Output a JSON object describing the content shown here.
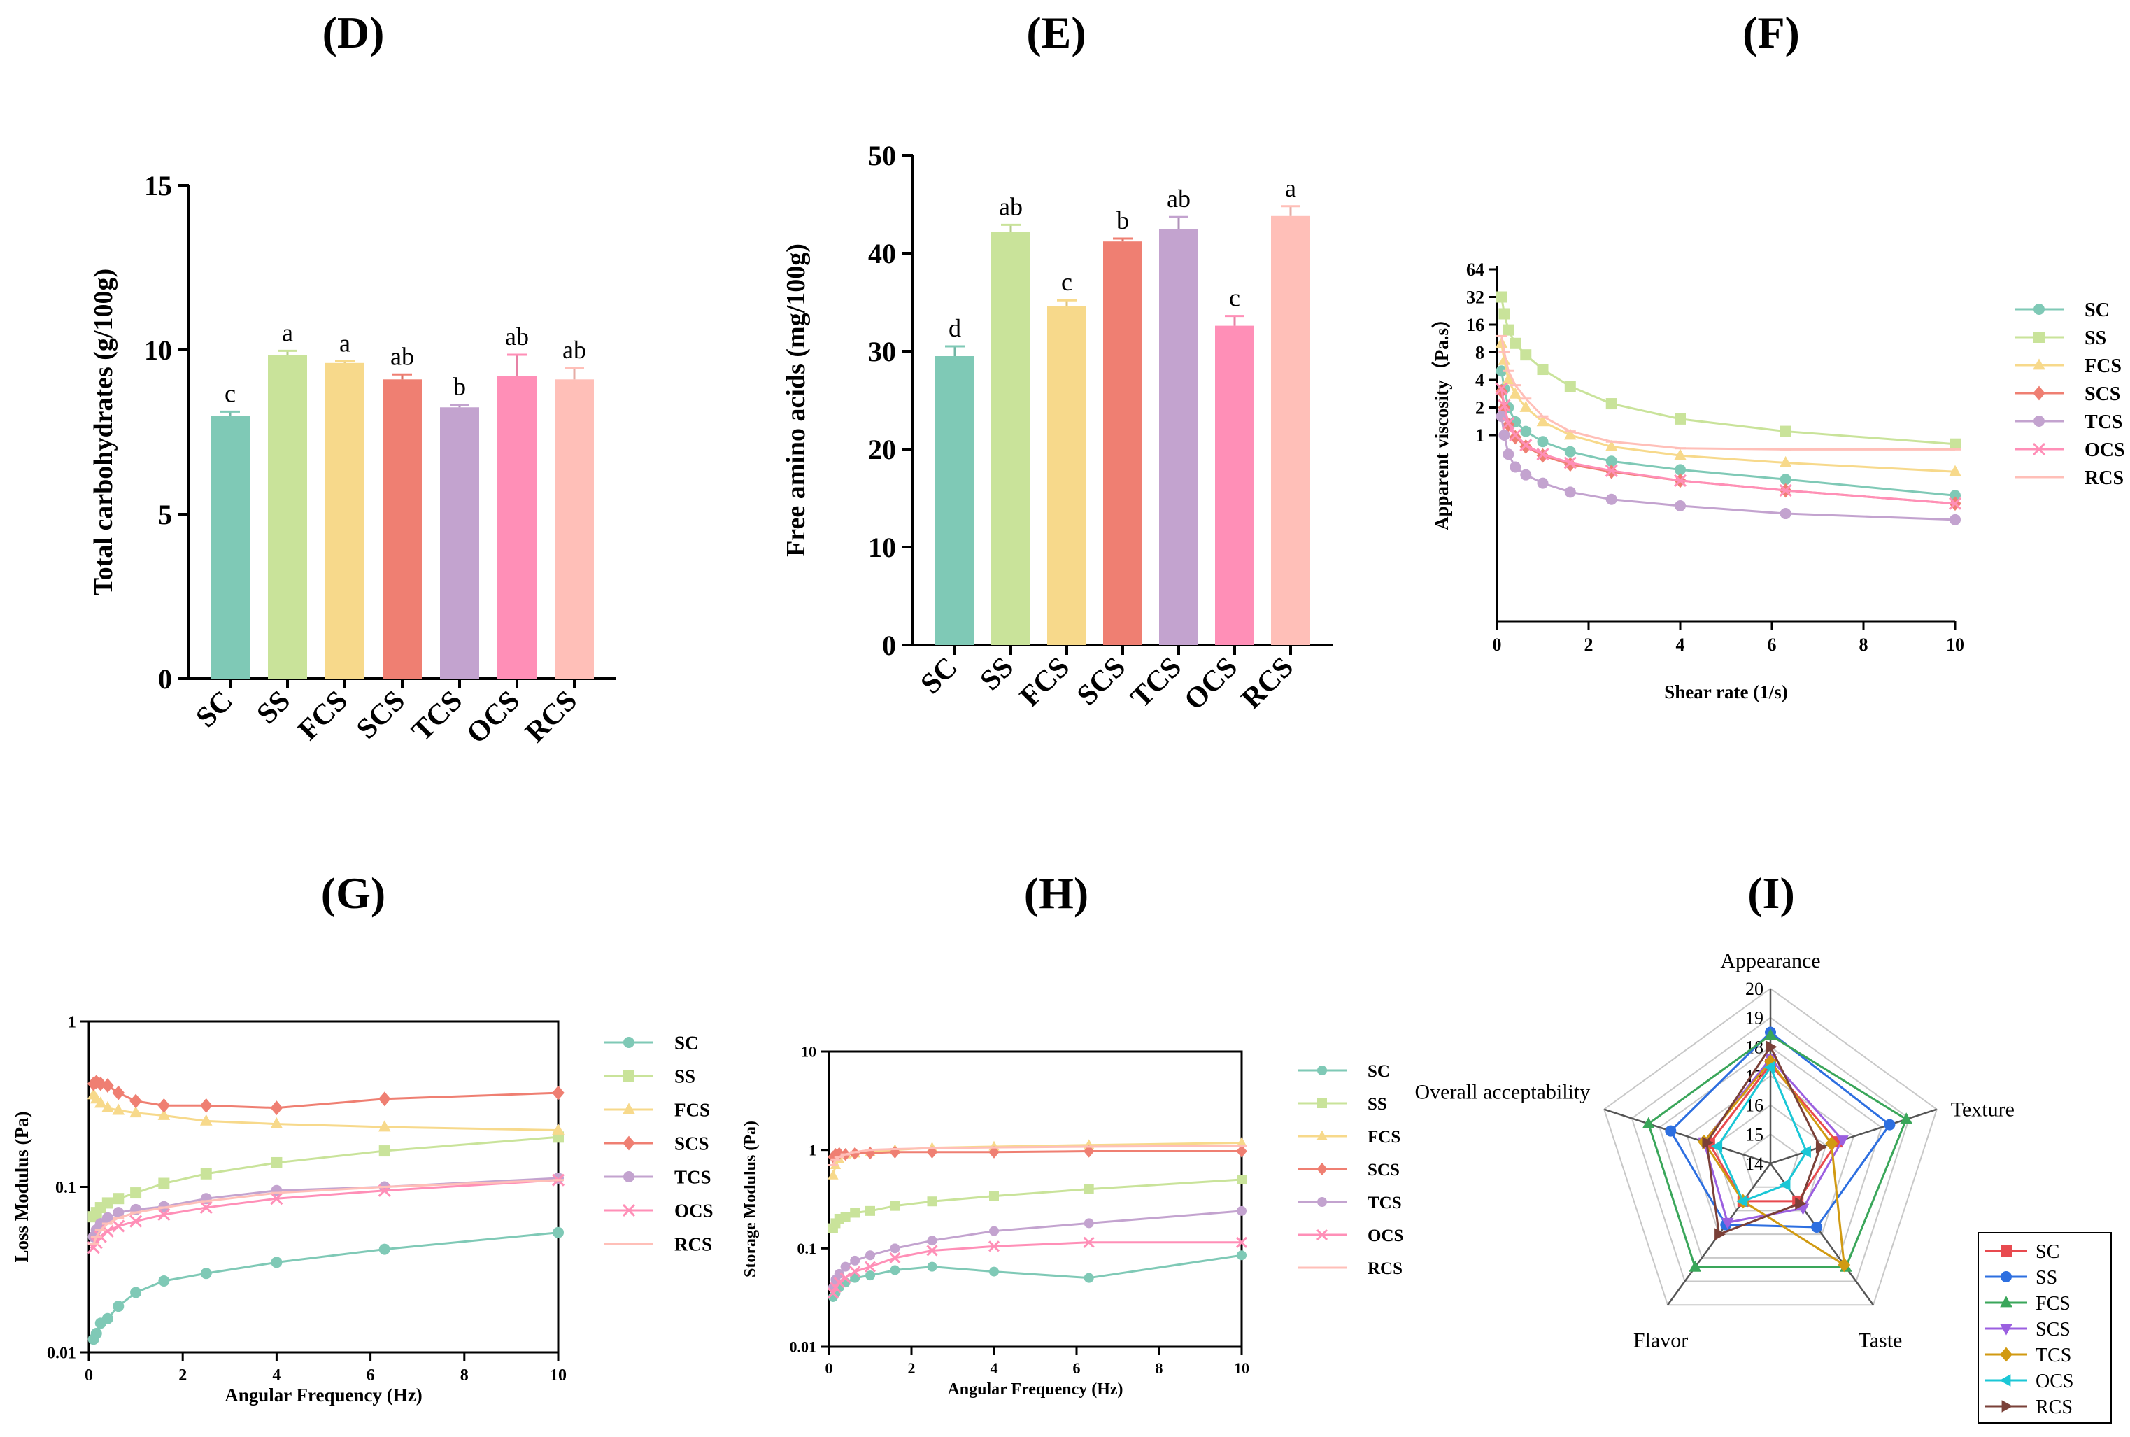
{
  "colors": {
    "SC": "#7fc9b6",
    "SS": "#c9e39a",
    "FCS": "#f7d98b",
    "SCS": "#ef7f72",
    "TCS": "#c3a3cf",
    "OCS": "#ff8fb7",
    "RCS": "#ffbfb8",
    "lineSC": "#e84a4f",
    "lineSS": "#2d6fe0",
    "lineFCS": "#3aa65a",
    "lineSCS": "#9b5fe0",
    "lineTCS": "#d19a12",
    "lineOCS": "#1bc7d6",
    "lineRCS": "#7a4038"
  },
  "chart_data": [
    {
      "id": "D",
      "panel_label": "(D)",
      "type": "bar",
      "categories": [
        "SC",
        "SS",
        "FCS",
        "SCS",
        "TCS",
        "OCS",
        "RCS"
      ],
      "values": [
        8.0,
        9.85,
        9.6,
        9.1,
        8.25,
        9.2,
        9.1
      ],
      "errors": [
        0.12,
        0.12,
        0.05,
        0.15,
        0.08,
        0.65,
        0.35
      ],
      "letters": [
        "c",
        "a",
        "a",
        "ab",
        "b",
        "ab",
        "ab"
      ],
      "ylabel": "Total carbohydrates (g/100g)",
      "ylim": [
        0,
        15
      ],
      "yticks": [
        "0",
        "5",
        "10",
        "15"
      ]
    },
    {
      "id": "E",
      "panel_label": "(E)",
      "type": "bar",
      "categories": [
        "SC",
        "SS",
        "FCS",
        "SCS",
        "TCS",
        "OCS",
        "RCS"
      ],
      "values": [
        29.5,
        42.2,
        34.6,
        41.2,
        42.5,
        32.6,
        43.8
      ],
      "errors": [
        1.0,
        0.7,
        0.6,
        0.3,
        1.2,
        1.0,
        1.0
      ],
      "letters": [
        "d",
        "ab",
        "c",
        "b",
        "ab",
        "c",
        "a"
      ],
      "ylabel": "Free amino acids (mg/100g)",
      "ylim": [
        0,
        50
      ],
      "yticks": [
        "0",
        "10",
        "20",
        "30",
        "40",
        "50"
      ]
    },
    {
      "id": "F",
      "panel_label": "(F)",
      "type": "line",
      "xlabel": "Shear rate (1/s)",
      "ylabel": "Apparent viscosity（Pa.s）",
      "xlim": [
        0,
        10
      ],
      "xticks": [
        "0",
        "2",
        "4",
        "6",
        "8",
        "10"
      ],
      "yticks": [
        "1",
        "2",
        "4",
        "8",
        "16",
        "32",
        "64"
      ],
      "series": [
        {
          "name": "SC",
          "x": [
            0.1,
            0.16,
            0.25,
            0.4,
            0.63,
            1,
            1.6,
            2.5,
            4,
            6.3,
            10
          ],
          "y": [
            5,
            3.2,
            2,
            1.4,
            1.1,
            0.85,
            0.66,
            0.52,
            0.42,
            0.33,
            0.22
          ]
        },
        {
          "name": "SS",
          "x": [
            0.1,
            0.16,
            0.25,
            0.4,
            0.63,
            1,
            1.6,
            2.5,
            4,
            6.3,
            10
          ],
          "y": [
            32,
            21,
            14,
            10,
            7.5,
            5.2,
            3.4,
            2.2,
            1.5,
            1.1,
            0.8
          ]
        },
        {
          "name": "FCS",
          "x": [
            0.1,
            0.16,
            0.25,
            0.4,
            0.63,
            1,
            1.6,
            2.5,
            4,
            6.3,
            10
          ],
          "y": [
            10,
            6.5,
            4,
            2.8,
            2,
            1.4,
            1,
            0.75,
            0.6,
            0.5,
            0.4
          ]
        },
        {
          "name": "SCS",
          "x": [
            0.1,
            0.16,
            0.25,
            0.4,
            0.63,
            1,
            1.6,
            2.5,
            4,
            6.3,
            10
          ],
          "y": [
            3,
            2,
            1.3,
            0.95,
            0.75,
            0.6,
            0.48,
            0.4,
            0.32,
            0.25,
            0.18
          ]
        },
        {
          "name": "TCS",
          "x": [
            0.1,
            0.16,
            0.25,
            0.4,
            0.63,
            1,
            1.6,
            2.5,
            4,
            6.3,
            10
          ],
          "y": [
            1.6,
            1,
            0.62,
            0.45,
            0.37,
            0.3,
            0.24,
            0.2,
            0.17,
            0.14,
            0.12
          ]
        },
        {
          "name": "OCS",
          "x": [
            0.1,
            0.16,
            0.25,
            0.4,
            0.63,
            1,
            1.6,
            2.5,
            4,
            6.3,
            10
          ],
          "y": [
            3.2,
            2.1,
            1.35,
            1,
            0.78,
            0.62,
            0.5,
            0.41,
            0.32,
            0.25,
            0.18
          ]
        },
        {
          "name": "RCS",
          "x": [
            0.1,
            0.16,
            0.25,
            0.4,
            0.63,
            1,
            1.6,
            2.5,
            4,
            6.3,
            10
          ],
          "y": [
            12,
            8,
            5,
            3.5,
            2.5,
            1.6,
            1.1,
            0.85,
            0.72,
            0.7,
            0.7
          ]
        }
      ]
    },
    {
      "id": "G",
      "panel_label": "(G)",
      "type": "line",
      "xlabel": "Angular Frequency (Hz)",
      "ylabel": "Loss Modulus (Pa)",
      "xlim": [
        0,
        10
      ],
      "xticks": [
        "0",
        "2",
        "4",
        "6",
        "8",
        "10"
      ],
      "ylim": [
        0.01,
        1
      ],
      "yticks": [
        "0.01",
        "0.1",
        "1"
      ],
      "series": [
        {
          "name": "SC",
          "x": [
            0.1,
            0.16,
            0.25,
            0.4,
            0.63,
            1,
            1.6,
            2.5,
            4,
            6.3,
            10
          ],
          "y": [
            0.012,
            0.013,
            0.015,
            0.016,
            0.019,
            0.023,
            0.027,
            0.03,
            0.035,
            0.042,
            0.053
          ]
        },
        {
          "name": "SS",
          "x": [
            0.1,
            0.16,
            0.25,
            0.4,
            0.63,
            1,
            1.6,
            2.5,
            4,
            6.3,
            10
          ],
          "y": [
            0.066,
            0.07,
            0.075,
            0.08,
            0.085,
            0.092,
            0.105,
            0.12,
            0.14,
            0.165,
            0.2
          ]
        },
        {
          "name": "FCS",
          "x": [
            0.1,
            0.16,
            0.25,
            0.4,
            0.63,
            1,
            1.6,
            2.5,
            4,
            6.3,
            10
          ],
          "y": [
            0.36,
            0.34,
            0.32,
            0.3,
            0.29,
            0.28,
            0.27,
            0.25,
            0.24,
            0.23,
            0.22
          ]
        },
        {
          "name": "SCS",
          "x": [
            0.1,
            0.16,
            0.25,
            0.4,
            0.63,
            1,
            1.6,
            2.5,
            4,
            6.3,
            10
          ],
          "y": [
            0.42,
            0.43,
            0.42,
            0.41,
            0.37,
            0.33,
            0.31,
            0.31,
            0.3,
            0.34,
            0.37
          ]
        },
        {
          "name": "TCS",
          "x": [
            0.1,
            0.16,
            0.25,
            0.4,
            0.63,
            1,
            1.6,
            2.5,
            4,
            6.3,
            10
          ],
          "y": [
            0.05,
            0.055,
            0.06,
            0.065,
            0.07,
            0.073,
            0.076,
            0.085,
            0.095,
            0.1,
            0.113
          ]
        },
        {
          "name": "OCS",
          "x": [
            0.1,
            0.16,
            0.25,
            0.4,
            0.63,
            1,
            1.6,
            2.5,
            4,
            6.3,
            10
          ],
          "y": [
            0.043,
            0.046,
            0.05,
            0.054,
            0.058,
            0.062,
            0.068,
            0.075,
            0.085,
            0.095,
            0.11
          ]
        },
        {
          "name": "RCS",
          "x": [
            0.1,
            0.16,
            0.25,
            0.4,
            0.63,
            1,
            1.6,
            2.5,
            4,
            6.3,
            10
          ],
          "y": [
            0.045,
            0.05,
            0.055,
            0.06,
            0.065,
            0.07,
            0.075,
            0.082,
            0.092,
            0.1,
            0.11
          ]
        }
      ]
    },
    {
      "id": "H",
      "panel_label": "(H)",
      "type": "line",
      "xlabel": "Angular Frequency (Hz)",
      "ylabel": "Storage Modulus (Pa)",
      "xlim": [
        0,
        10
      ],
      "xticks": [
        "0",
        "2",
        "4",
        "6",
        "8",
        "10"
      ],
      "ylim": [
        0.01,
        10
      ],
      "yticks": [
        "0.01",
        "0.1",
        "1",
        "10"
      ],
      "series": [
        {
          "name": "SC",
          "x": [
            0.1,
            0.16,
            0.25,
            0.4,
            0.63,
            1,
            1.6,
            2.5,
            4,
            6.3,
            10
          ],
          "y": [
            0.032,
            0.035,
            0.04,
            0.045,
            0.05,
            0.053,
            0.06,
            0.065,
            0.058,
            0.05,
            0.085
          ]
        },
        {
          "name": "SS",
          "x": [
            0.1,
            0.16,
            0.25,
            0.4,
            0.63,
            1,
            1.6,
            2.5,
            4,
            6.3,
            10
          ],
          "y": [
            0.16,
            0.18,
            0.2,
            0.21,
            0.23,
            0.24,
            0.27,
            0.3,
            0.34,
            0.4,
            0.5
          ]
        },
        {
          "name": "FCS",
          "x": [
            0.1,
            0.16,
            0.25,
            0.4,
            0.63,
            1,
            1.6,
            2.5,
            4,
            6.3,
            10
          ],
          "y": [
            0.55,
            0.7,
            0.8,
            0.9,
            0.92,
            0.95,
            1.0,
            1.05,
            1.08,
            1.12,
            1.18
          ]
        },
        {
          "name": "SCS",
          "x": [
            0.1,
            0.16,
            0.25,
            0.4,
            0.63,
            1,
            1.6,
            2.5,
            4,
            6.3,
            10
          ],
          "y": [
            0.85,
            0.9,
            0.92,
            0.9,
            0.92,
            0.93,
            0.95,
            0.95,
            0.95,
            0.97,
            0.97
          ]
        },
        {
          "name": "TCS",
          "x": [
            0.1,
            0.16,
            0.25,
            0.4,
            0.63,
            1,
            1.6,
            2.5,
            4,
            6.3,
            10
          ],
          "y": [
            0.04,
            0.048,
            0.055,
            0.065,
            0.075,
            0.085,
            0.1,
            0.12,
            0.15,
            0.18,
            0.24
          ]
        },
        {
          "name": "OCS",
          "x": [
            0.1,
            0.16,
            0.25,
            0.4,
            0.63,
            1,
            1.6,
            2.5,
            4,
            6.3,
            10
          ],
          "y": [
            0.035,
            0.04,
            0.045,
            0.05,
            0.058,
            0.065,
            0.08,
            0.095,
            0.105,
            0.115,
            0.115
          ]
        },
        {
          "name": "RCS",
          "x": [
            0.1,
            0.16,
            0.25,
            0.4,
            0.63,
            1,
            1.6,
            2.5,
            4,
            6.3,
            10
          ],
          "y": [
            0.7,
            0.8,
            0.85,
            0.9,
            0.95,
            1.0,
            1.02,
            1.04,
            1.06,
            1.08,
            1.1
          ]
        }
      ]
    },
    {
      "id": "I",
      "panel_label": "(I)",
      "type": "radar",
      "axes": [
        "Appearance",
        "Texture",
        "Taste",
        "Flavor",
        "Overall acceptability"
      ],
      "rlim": [
        14,
        20
      ],
      "rticks": [
        "14",
        "15",
        "16",
        "17",
        "18",
        "19",
        "20"
      ],
      "series": [
        {
          "name": "SC",
          "values": [
            17.4,
            16.4,
            15.6,
            15.6,
            16.2
          ]
        },
        {
          "name": "SS",
          "values": [
            18.5,
            18.3,
            16.7,
            16.6,
            17.6
          ]
        },
        {
          "name": "FCS",
          "values": [
            18.4,
            18.9,
            18.4,
            18.4,
            18.4
          ]
        },
        {
          "name": "SCS",
          "values": [
            17.6,
            16.6,
            15.9,
            16.5,
            16.4
          ]
        },
        {
          "name": "TCS",
          "values": [
            17.5,
            16.2,
            18.3,
            15.6,
            16.4
          ]
        },
        {
          "name": "OCS",
          "values": [
            17.3,
            15.3,
            14.9,
            15.6,
            15.9
          ]
        },
        {
          "name": "RCS",
          "values": [
            18.0,
            15.8,
            15.7,
            17.0,
            16.3
          ]
        }
      ]
    }
  ]
}
